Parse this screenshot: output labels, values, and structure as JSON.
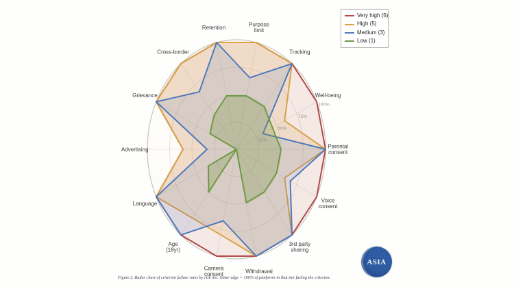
{
  "figure": {
    "caption": "Figure 2. Radar chart of criterion failure rates by risk tier. Outer edge = 100% of platforms in that tier failing the criterion.",
    "logo_text": "ASIA"
  },
  "legend": {
    "items": [
      {
        "label": "Very high (5)",
        "color": "#b24848"
      },
      {
        "label": "High (5)",
        "color": "#d9a24a"
      },
      {
        "label": "Medium (3)",
        "color": "#4f79bd"
      },
      {
        "label": "Low (1)",
        "color": "#6f9a43"
      }
    ]
  },
  "chart_data": {
    "type": "radar",
    "title": "",
    "axes": [
      {
        "label": "Purpose limit",
        "lines": [
          "Purpose",
          "limit"
        ]
      },
      {
        "label": "Tracking",
        "lines": [
          "Tracking"
        ]
      },
      {
        "label": "Well-being",
        "lines": [
          "Well-being"
        ]
      },
      {
        "label": "Parental consent",
        "lines": [
          "Parental",
          "consent"
        ]
      },
      {
        "label": "Voice consent",
        "lines": [
          "Voice",
          "consent"
        ]
      },
      {
        "label": "3rd party sharing",
        "lines": [
          "3rd party",
          "sharing"
        ]
      },
      {
        "label": "Withdrawal",
        "lines": [
          "Withdrawal"
        ]
      },
      {
        "label": "Camera consent",
        "lines": [
          "Camera",
          "consent"
        ]
      },
      {
        "label": "Age (18yr)",
        "lines": [
          "Age",
          "(18yr)"
        ]
      },
      {
        "label": "Language",
        "lines": [
          "Language"
        ]
      },
      {
        "label": "Advertising",
        "lines": [
          "Advertising"
        ]
      },
      {
        "label": "Grievance",
        "lines": [
          "Grievance"
        ]
      },
      {
        "label": "Cross-border",
        "lines": [
          "Cross-border"
        ]
      },
      {
        "label": "Retention",
        "lines": [
          "Retention"
        ]
      }
    ],
    "radial_ticks": [
      {
        "value": 25,
        "label": "25%"
      },
      {
        "value": 50,
        "label": "50%"
      },
      {
        "value": 75,
        "label": "75%"
      },
      {
        "value": 100,
        "label": "100%"
      }
    ],
    "value_range": [
      0,
      100
    ],
    "series": [
      {
        "name": "Very high (5)",
        "color": "#b24848",
        "fill": "rgba(178,72,72,0.10)",
        "values": [
          100,
          100,
          100,
          100,
          100,
          100,
          100,
          100,
          100,
          100,
          60,
          100,
          100,
          100
        ]
      },
      {
        "name": "High (5)",
        "color": "#d9a24a",
        "fill": "rgba(217,163,80,0.20)",
        "values": [
          100,
          100,
          60,
          100,
          60,
          100,
          100,
          80,
          80,
          100,
          60,
          100,
          100,
          100
        ]
      },
      {
        "name": "Medium (3)",
        "color": "#4f79bd",
        "fill": "rgba(85,120,185,0.15)",
        "values": [
          67,
          100,
          33,
          100,
          67,
          100,
          100,
          67,
          100,
          100,
          33,
          100,
          67,
          100
        ]
      },
      {
        "name": "Low (1)",
        "color": "#6f9a43",
        "fill": "rgba(120,152,74,0.30)",
        "values": [
          50,
          50,
          45,
          50,
          50,
          50,
          50,
          0,
          50,
          35,
          0,
          33,
          40,
          50
        ]
      }
    ],
    "legend_position": "top-right",
    "grid": true
  }
}
